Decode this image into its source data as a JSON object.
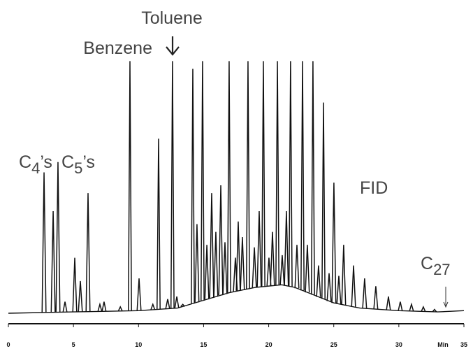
{
  "chart_data": {
    "type": "chromatogram",
    "color": "#111111",
    "xlim": [
      0,
      35
    ],
    "xticks": [
      0,
      5,
      10,
      15,
      20,
      25,
      30,
      35
    ],
    "x_label": "Min",
    "ylim": [
      0,
      100
    ],
    "annotations": [
      {
        "text": "Toluene"
      },
      {
        "text": "Benzene"
      },
      {
        "text": "C",
        "sub": "4",
        "suffix": "’s"
      },
      {
        "text": "C",
        "sub": "5",
        "suffix": "’s"
      },
      {
        "text": "FID"
      },
      {
        "text": "C",
        "sub": "27"
      }
    ],
    "baseline": {
      "x": [
        0,
        5,
        10,
        13,
        15,
        17,
        19,
        21,
        22,
        23,
        25,
        27,
        30,
        33,
        35
      ],
      "values": [
        0,
        0.5,
        1,
        2,
        5,
        8,
        10,
        11,
        10,
        8,
        4,
        2,
        1,
        0.5,
        1
      ]
    },
    "peaks": {
      "x": [
        2.74,
        3.44,
        3.81,
        4.35,
        5.1,
        5.53,
        6.12,
        7.03,
        7.35,
        8.6,
        9.34,
        10.04,
        11.1,
        11.54,
        12.24,
        12.61,
        12.94,
        13.4,
        14.17,
        14.49,
        14.92,
        15.25,
        15.62,
        15.94,
        16.32,
        16.64,
        16.96,
        17.44,
        17.66,
        17.98,
        18.41,
        18.9,
        19.27,
        19.59,
        20.02,
        20.29,
        20.67,
        21.04,
        21.36,
        21.68,
        22.17,
        22.6,
        22.97,
        23.4,
        23.83,
        24.21,
        24.64,
        25.01,
        25.39,
        25.76,
        26.52,
        27.37,
        28.23,
        29.2,
        30.11,
        30.97,
        31.88,
        32.74
      ],
      "values": [
        55,
        40,
        59,
        5,
        22,
        13,
        47,
        4,
        5,
        3,
        98,
        14,
        4,
        68,
        6,
        98,
        7,
        4,
        95,
        35,
        98,
        27,
        47,
        32,
        50,
        28,
        98,
        22,
        36,
        30,
        98,
        26,
        40,
        98,
        22,
        32,
        98,
        23,
        40,
        98,
        27,
        98,
        27,
        98,
        19,
        82,
        16,
        51,
        15,
        27,
        19,
        14,
        11,
        7,
        5,
        4,
        3,
        2
      ]
    }
  }
}
